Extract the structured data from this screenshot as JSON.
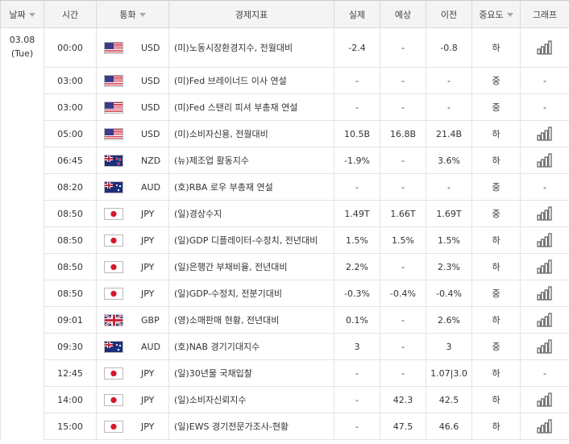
{
  "headers": {
    "date": "날짜",
    "time": "시간",
    "currency": "통화",
    "indicator": "경제지표",
    "actual": "실제",
    "forecast": "예상",
    "previous": "이전",
    "importance": "중요도",
    "graph": "그래프"
  },
  "header_icons": {
    "date": "sort-triangle-icon",
    "currency": "sort-triangle-icon",
    "importance": "sort-triangle-icon"
  },
  "date": {
    "line1": "03.08",
    "line2": "(Tue)"
  },
  "rows": [
    {
      "time": "00:00",
      "flag": "usd",
      "currency": "USD",
      "indicator": "(미)노동시장환경지수, 전월대비",
      "actual": "-2.4",
      "forecast": "-",
      "previous": "-0.8",
      "importance": "하",
      "graph": true
    },
    {
      "time": "03:00",
      "flag": "usd",
      "currency": "USD",
      "indicator": "(미)Fed 브레이너드 이사 연설",
      "actual": "-",
      "forecast": "-",
      "previous": "-",
      "importance": "중",
      "graph": false
    },
    {
      "time": "03:00",
      "flag": "usd",
      "currency": "USD",
      "indicator": "(미)Fed 스탠리 피셔 부총재 연설",
      "actual": "-",
      "forecast": "-",
      "previous": "-",
      "importance": "중",
      "graph": false
    },
    {
      "time": "05:00",
      "flag": "usd",
      "currency": "USD",
      "indicator": "(미)소비자신용, 전월대비",
      "actual": "10.5B",
      "forecast": "16.8B",
      "previous": "21.4B",
      "importance": "하",
      "graph": true
    },
    {
      "time": "06:45",
      "flag": "nzd",
      "currency": "NZD",
      "indicator": "(뉴)제조업 활동지수",
      "actual": "-1.9%",
      "forecast": "-",
      "previous": "3.6%",
      "importance": "하",
      "graph": true
    },
    {
      "time": "08:20",
      "flag": "aud",
      "currency": "AUD",
      "indicator": "(호)RBA 로우 부총재 연설",
      "actual": "-",
      "forecast": "-",
      "previous": "-",
      "importance": "중",
      "graph": false
    },
    {
      "time": "08:50",
      "flag": "jpy",
      "currency": "JPY",
      "indicator": "(일)경상수지",
      "actual": "1.49T",
      "forecast": "1.66T",
      "previous": "1.69T",
      "importance": "중",
      "graph": true
    },
    {
      "time": "08:50",
      "flag": "jpy",
      "currency": "JPY",
      "indicator": "(일)GDP 디플레이터-수정치, 전년대비",
      "actual": "1.5%",
      "forecast": "1.5%",
      "previous": "1.5%",
      "importance": "하",
      "graph": true
    },
    {
      "time": "08:50",
      "flag": "jpy",
      "currency": "JPY",
      "indicator": "(일)은행간 부채비율, 전년대비",
      "actual": "2.2%",
      "forecast": "-",
      "previous": "2.3%",
      "importance": "하",
      "graph": true
    },
    {
      "time": "08:50",
      "flag": "jpy",
      "currency": "JPY",
      "indicator": "(일)GDP-수정치, 전분기대비",
      "actual": "-0.3%",
      "forecast": "-0.4%",
      "previous": "-0.4%",
      "importance": "중",
      "graph": true
    },
    {
      "time": "09:01",
      "flag": "gbp",
      "currency": "GBP",
      "indicator": "(영)소매판매 현황, 전년대비",
      "actual": "0.1%",
      "forecast": "-",
      "previous": "2.6%",
      "importance": "하",
      "graph": true
    },
    {
      "time": "09:30",
      "flag": "aud",
      "currency": "AUD",
      "indicator": "(호)NAB 경기기대지수",
      "actual": "3",
      "forecast": "-",
      "previous": "3",
      "importance": "중",
      "graph": true
    },
    {
      "time": "12:45",
      "flag": "jpy",
      "currency": "JPY",
      "indicator": "(일)30년물 국채입찰",
      "actual": "-",
      "forecast": "-",
      "previous": "1.07|3.0",
      "importance": "하",
      "graph": false
    },
    {
      "time": "14:00",
      "flag": "jpy",
      "currency": "JPY",
      "indicator": "(일)소비자신뢰지수",
      "actual": "-",
      "forecast": "42.3",
      "previous": "42.5",
      "importance": "하",
      "graph": true
    },
    {
      "time": "15:00",
      "flag": "jpy",
      "currency": "JPY",
      "indicator": "(일)EWS 경기전문가조사-현황",
      "actual": "-",
      "forecast": "47.5",
      "previous": "46.6",
      "importance": "하",
      "graph": true
    }
  ],
  "no_graph_text": "-",
  "colors": {
    "chart_icon": "#5a5a5a",
    "header_bg": "#f4f4f4",
    "border": "#e3e3e3"
  }
}
